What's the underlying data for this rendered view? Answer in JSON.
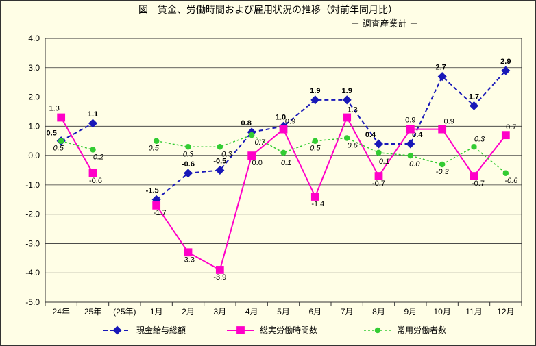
{
  "title": "図　賃金、労働時間および雇用状況の推移（対前年同月比）",
  "subtitle": "－ 調査産業計 －",
  "chart": {
    "type": "line",
    "background_color": "#fffee6",
    "gridline_color": "#333333",
    "plot_border_color": "#333333",
    "ylim": [
      -5,
      4
    ],
    "ytick_step": 1,
    "yticks": [
      "-5.0",
      "-4.0",
      "-3.0",
      "-2.0",
      "-1.0",
      "0.0",
      "1.0",
      "2.0",
      "3.0",
      "4.0"
    ],
    "categories": [
      "24年",
      "25年",
      "(25年)",
      "1月",
      "2月",
      "3月",
      "4月",
      "5月",
      "6月",
      "7月",
      "8月",
      "9月",
      "10月",
      "11月",
      "12月"
    ],
    "series": [
      {
        "name": "現金給与総額",
        "color": "#1818b8",
        "line_dash": "6,4",
        "marker": "diamond",
        "marker_size": 7,
        "line_width": 2,
        "values": [
          0.5,
          1.1,
          null,
          -1.5,
          -0.6,
          -0.5,
          0.8,
          1.0,
          1.9,
          1.9,
          0.4,
          0.4,
          2.7,
          1.7,
          2.9
        ],
        "labels": [
          "0.5",
          "1.1",
          null,
          "-1.5",
          "-0.6",
          "-0.5",
          "0.8",
          "1.0",
          "1.9",
          "1.9",
          "0.4",
          "0.4",
          "2.7",
          "1.7",
          "2.9"
        ],
        "label_bold": true
      },
      {
        "name": "総実労働時間数",
        "color": "#ff00c8",
        "line_dash": "none",
        "marker": "square",
        "marker_size": 7,
        "line_width": 2,
        "values": [
          1.3,
          -0.6,
          null,
          -1.7,
          -3.3,
          -3.9,
          0.0,
          0.9,
          -1.4,
          1.3,
          -0.7,
          0.9,
          0.9,
          -0.7,
          0.7
        ],
        "labels": [
          "1.3",
          "-0.6",
          null,
          "-1.7",
          "-3.3",
          "-3.9",
          "0.0",
          "0.9",
          "-1.4",
          "1.3",
          "-0.7",
          "0.9",
          "0.9",
          "-0.7",
          "0.7"
        ],
        "label_bold": false
      },
      {
        "name": "常用労働者数",
        "color": "#33cc33",
        "line_dash": "3,3",
        "marker": "circle",
        "marker_size": 6,
        "line_width": 1.5,
        "values": [
          0.5,
          0.2,
          null,
          0.5,
          0.3,
          0.3,
          0.7,
          0.1,
          0.5,
          0.6,
          0.1,
          0.0,
          -0.3,
          0.3,
          -0.6
        ],
        "labels": [
          "0.5",
          "0.2",
          null,
          "0.5",
          "0.3",
          "0.3",
          "0.7",
          "0.1",
          "0.5",
          "0.6",
          "0.1",
          "0.0",
          "-0.3",
          "0.3",
          "-0.6"
        ],
        "label_bold": false,
        "label_italic": true
      }
    ],
    "legend_labels": [
      "現金給与総額",
      "総実労働時間数",
      "常用労働者数"
    ]
  }
}
